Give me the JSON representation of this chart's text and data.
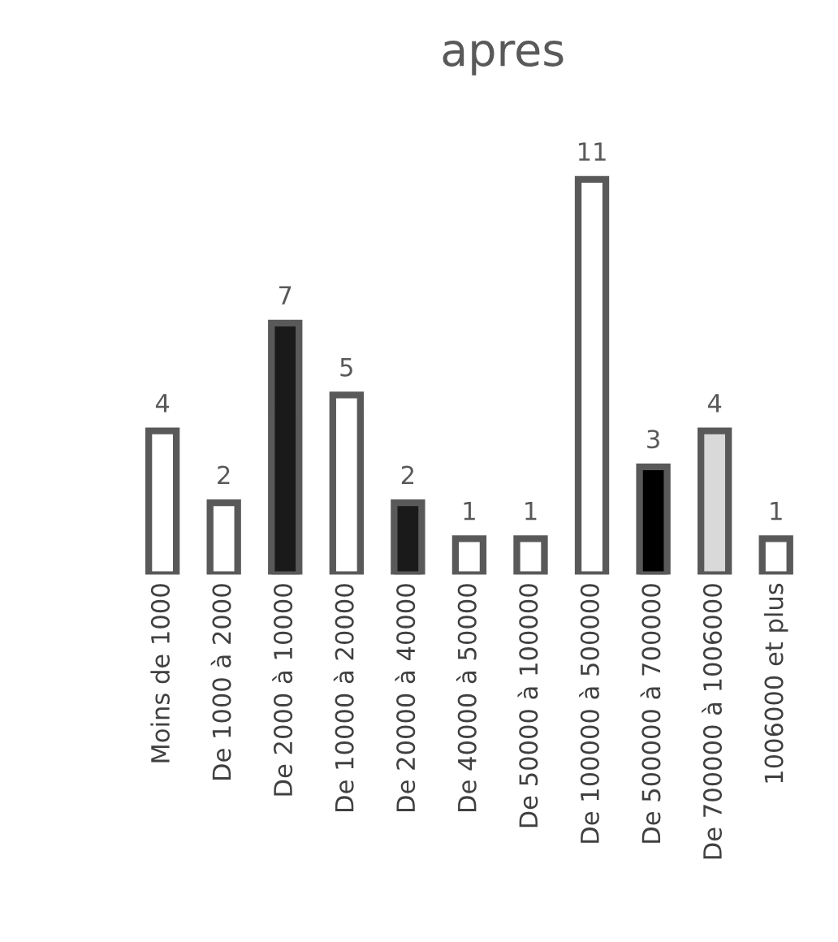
{
  "chart_data": {
    "type": "bar",
    "title": "apres",
    "categories": [
      "Moins de 1000",
      "De 1000 à 2000",
      "De 2000 à 10000",
      "De 10000 à 20000",
      "De 20000 à 40000",
      "De 40000 à 50000",
      "De 50000 à 100000",
      "De 100000 à 500000",
      "De 500000 à 700000",
      "De 700000 à 1006000",
      "1006000 et plus"
    ],
    "values": [
      4,
      2,
      7,
      5,
      2,
      1,
      1,
      11,
      3,
      4,
      1
    ],
    "colors": [
      "#ffffff",
      "#ffffff",
      "#1a1a1a",
      "#ffffff",
      "#1a1a1a",
      "#ffffff",
      "#ffffff",
      "#ffffff",
      "#000000",
      "#d9d9d9",
      "#ffffff"
    ],
    "data_labels": true
  }
}
